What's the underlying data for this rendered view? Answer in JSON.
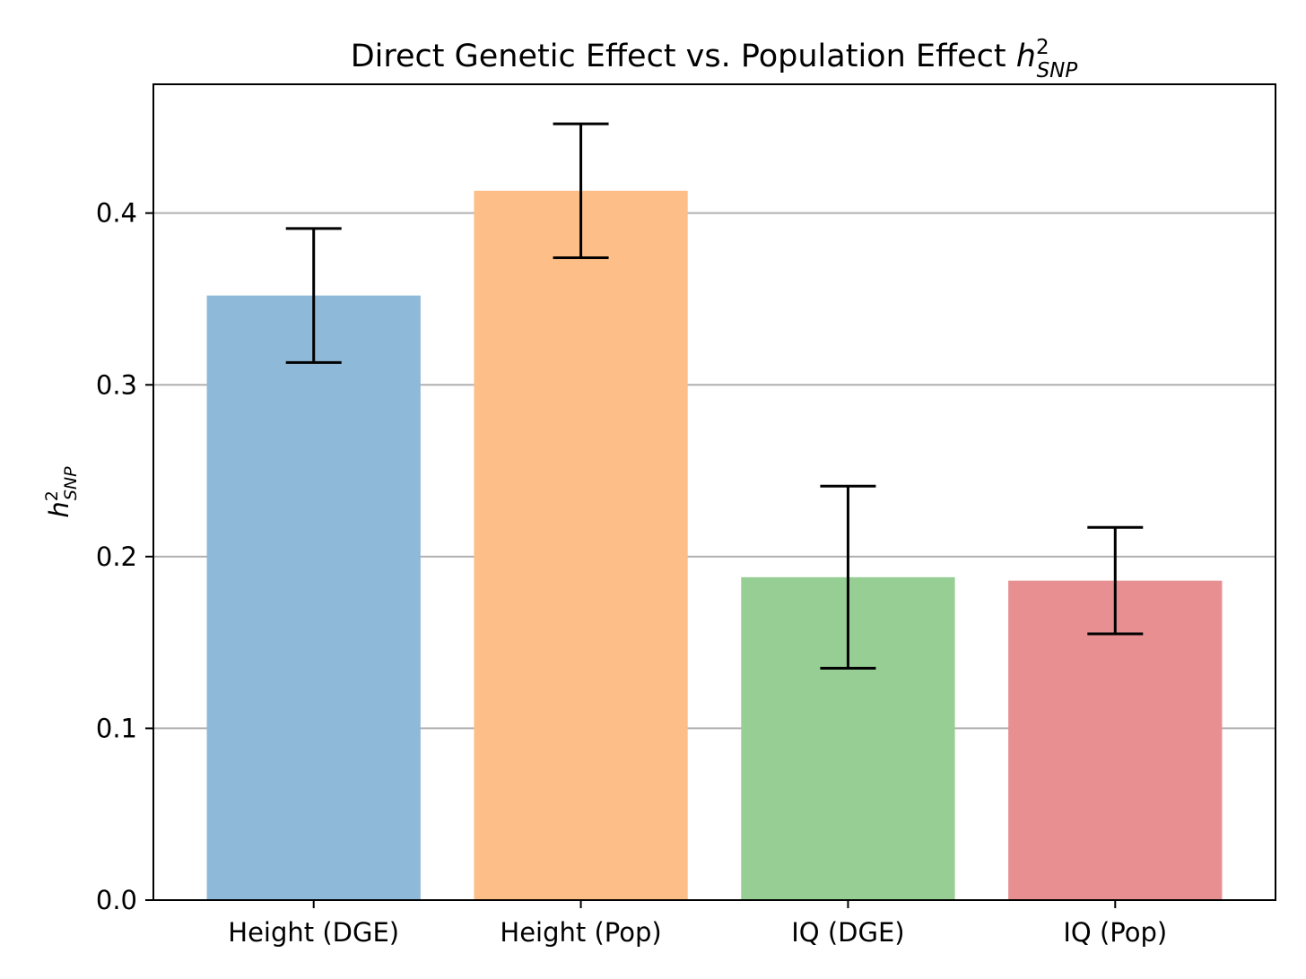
{
  "chart_data": {
    "type": "bar",
    "title": {
      "prefix": "Direct Genetic Effect vs. Population Effect ",
      "symbol": "h",
      "superscript": "2",
      "subscript": "SNP"
    },
    "xlabel": "",
    "ylabel": {
      "symbol": "h",
      "superscript": "2",
      "subscript": "SNP"
    },
    "categories": [
      "Height (DGE)",
      "Height (Pop)",
      "IQ (DGE)",
      "IQ (Pop)"
    ],
    "values": [
      0.352,
      0.413,
      0.188,
      0.186
    ],
    "error_low": [
      0.313,
      0.374,
      0.135,
      0.155
    ],
    "error_high": [
      0.391,
      0.452,
      0.241,
      0.217
    ],
    "colors": [
      "#8fb9d9",
      "#fdbe87",
      "#96ce94",
      "#e88f91"
    ],
    "ylim": [
      0,
      0.475
    ],
    "yticks": [
      0.0,
      0.1,
      0.2,
      0.3,
      0.4
    ],
    "ytick_labels": [
      "0.0",
      "0.1",
      "0.2",
      "0.3",
      "0.4"
    ],
    "grid": "horizontal",
    "grid_color": "#b0b0b0"
  }
}
